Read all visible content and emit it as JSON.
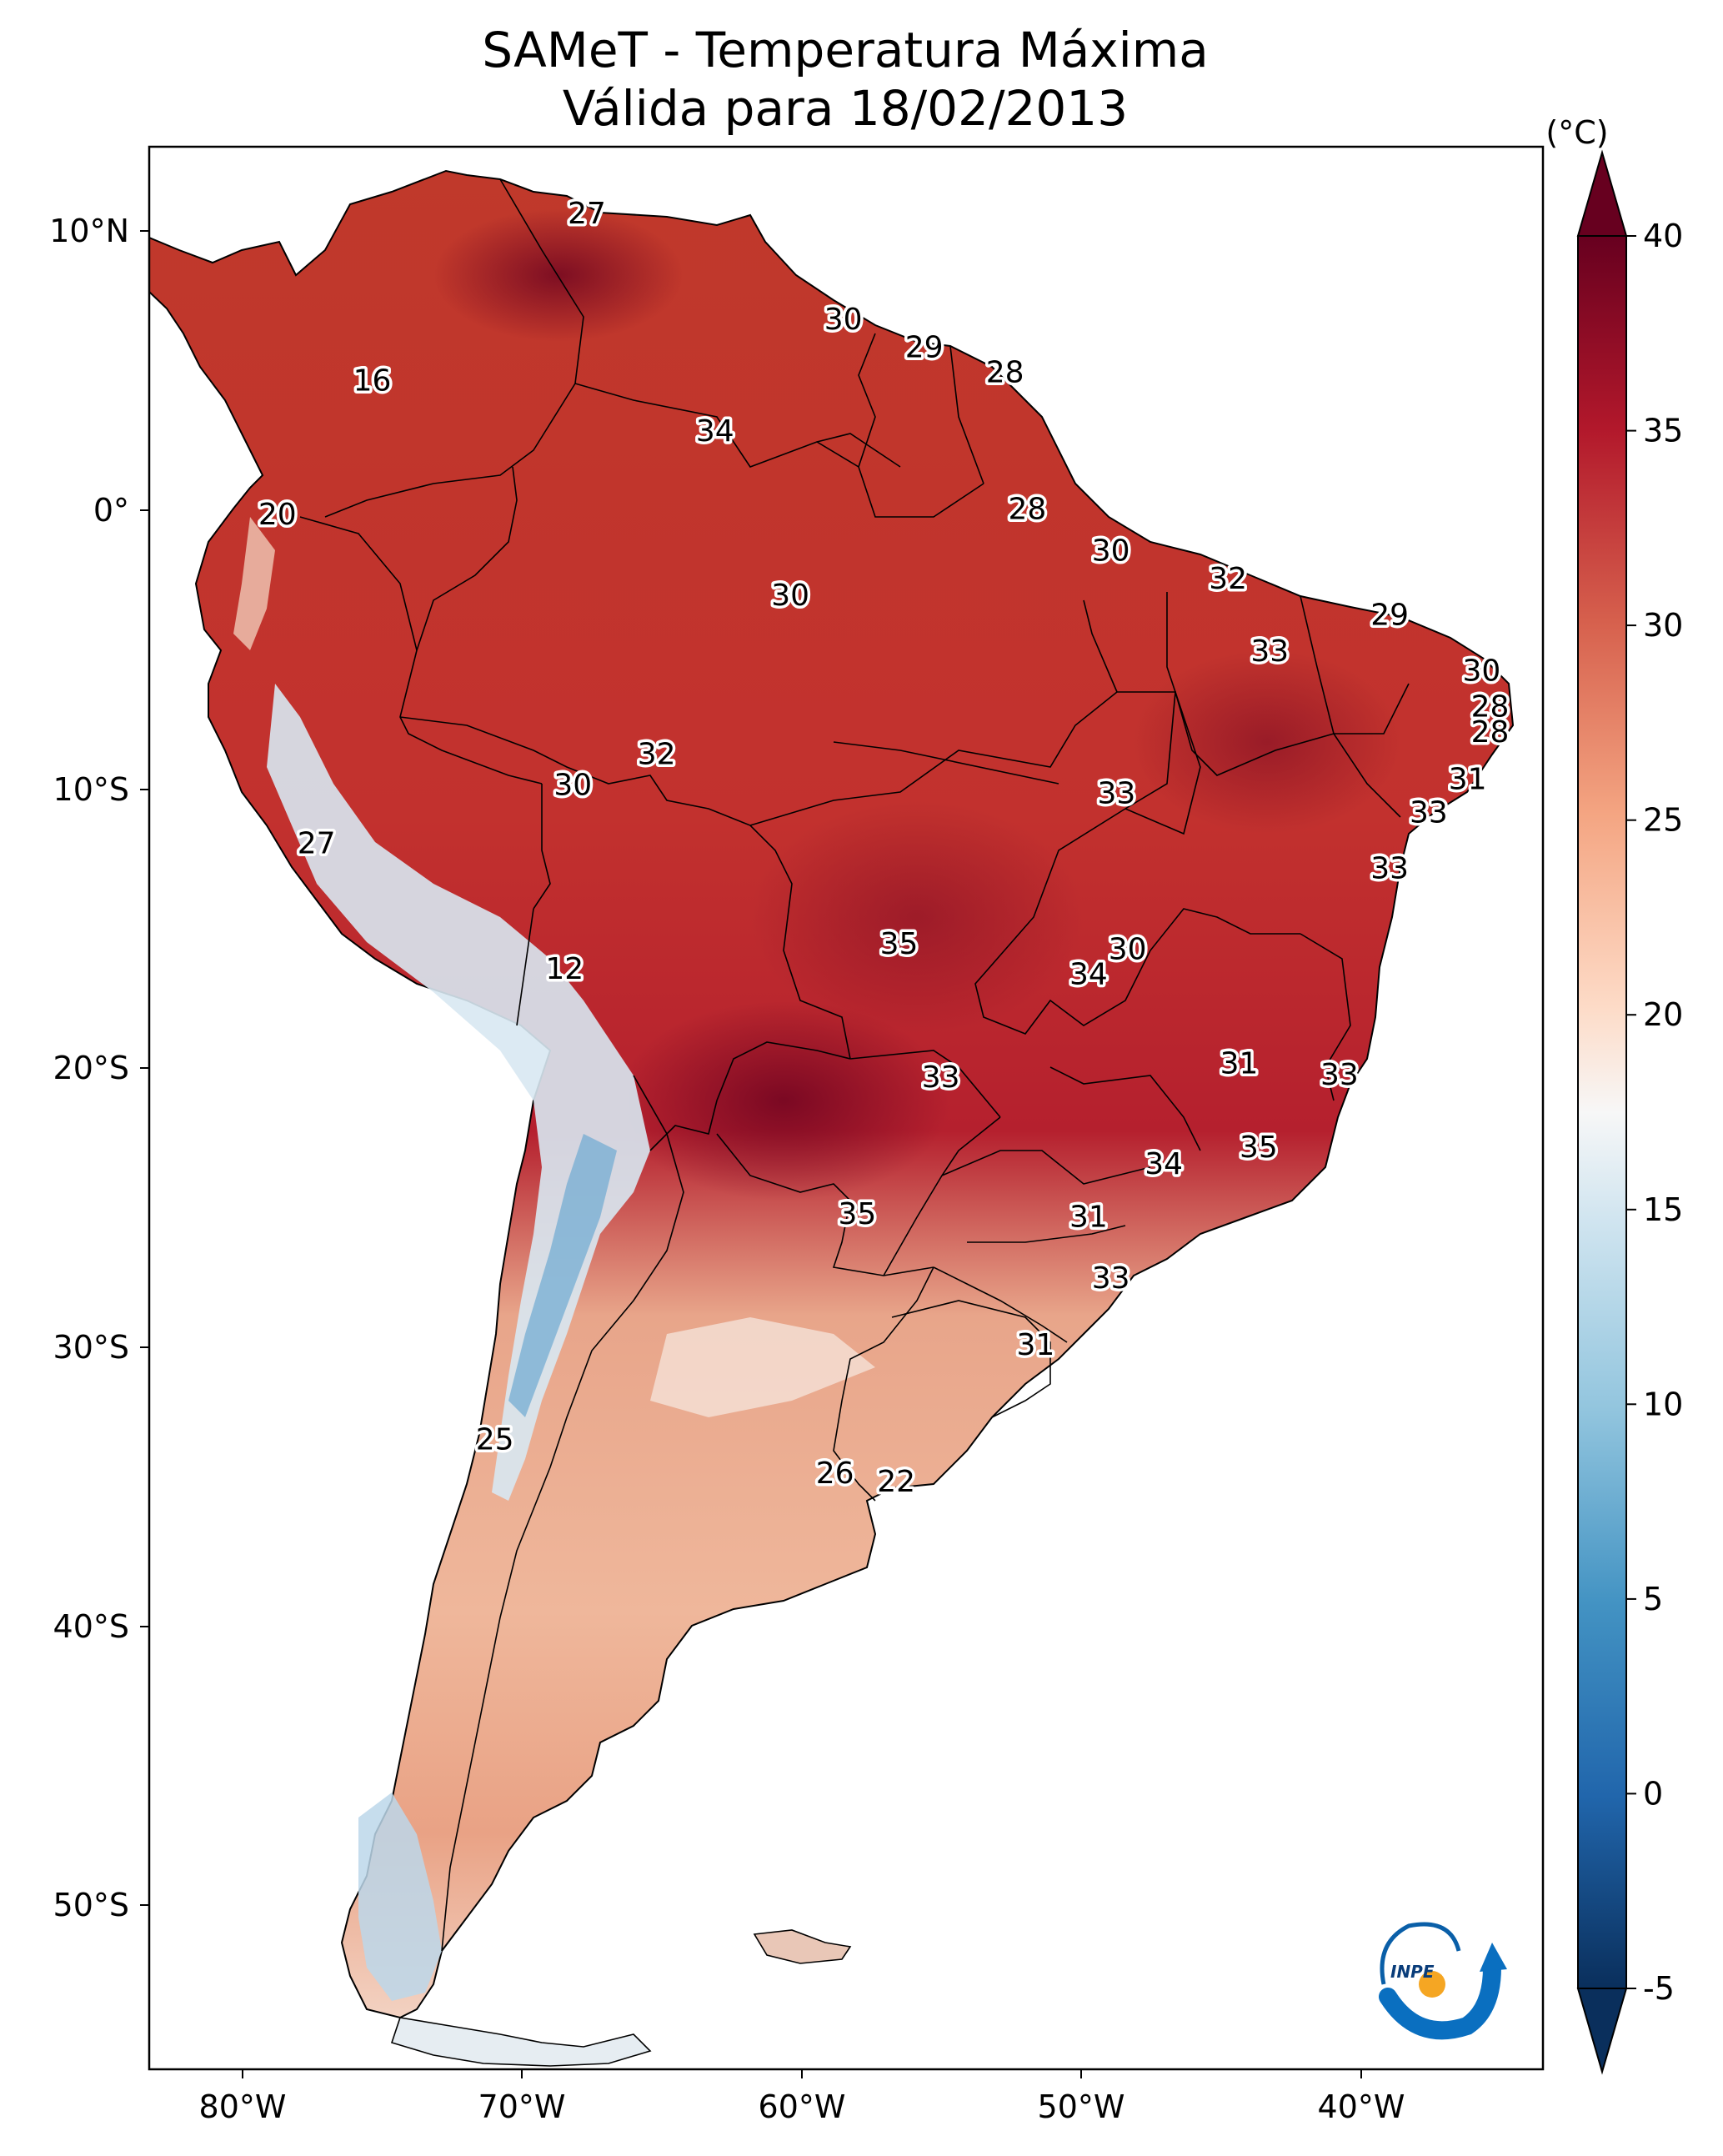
{
  "title": "SAMeT - Temperatura Máxima",
  "subtitle": "Válida para 18/02/2013",
  "logo_text": "INPE",
  "chart_data": {
    "type": "heatmap",
    "variable": "Temperatura Máxima",
    "colorbar": {
      "unit": "(°C)",
      "min": -5,
      "max": 40,
      "ticks": [
        40,
        35,
        30,
        25,
        20,
        15,
        10,
        5,
        0,
        -5
      ],
      "extend": "both",
      "colormap": "RdBu_r"
    },
    "lon_range": [
      -83,
      -33
    ],
    "lat_range": [
      -56,
      13
    ],
    "x_ticks": [
      {
        "value": -80,
        "label": "80°W"
      },
      {
        "value": -70,
        "label": "70°W"
      },
      {
        "value": -60,
        "label": "60°W"
      },
      {
        "value": -50,
        "label": "50°W"
      },
      {
        "value": -40,
        "label": "40°W"
      }
    ],
    "y_ticks": [
      {
        "value": 10,
        "label": "10°N"
      },
      {
        "value": 0,
        "label": "0°"
      },
      {
        "value": -10,
        "label": "10°S"
      },
      {
        "value": -20,
        "label": "20°S"
      },
      {
        "value": -30,
        "label": "30°S"
      },
      {
        "value": -40,
        "label": "40°S"
      },
      {
        "value": -50,
        "label": "50°S"
      }
    ],
    "station_values": [
      {
        "lon": -67.3,
        "lat": 10.6,
        "value": 27
      },
      {
        "lon": -75.0,
        "lat": 4.6,
        "value": 16
      },
      {
        "lon": -58.1,
        "lat": 6.8,
        "value": 30
      },
      {
        "lon": -55.2,
        "lat": 5.8,
        "value": 29
      },
      {
        "lon": -52.3,
        "lat": 4.9,
        "value": 28
      },
      {
        "lon": -62.7,
        "lat": 2.8,
        "value": 34
      },
      {
        "lon": -78.4,
        "lat": -0.2,
        "value": 20
      },
      {
        "lon": -51.5,
        "lat": 0.0,
        "value": 28
      },
      {
        "lon": -48.5,
        "lat": -1.5,
        "value": 30
      },
      {
        "lon": -60.0,
        "lat": -3.1,
        "value": 30
      },
      {
        "lon": -44.3,
        "lat": -2.5,
        "value": 32
      },
      {
        "lon": -38.5,
        "lat": -3.8,
        "value": 29
      },
      {
        "lon": -42.8,
        "lat": -5.1,
        "value": 33
      },
      {
        "lon": -35.2,
        "lat": -5.8,
        "value": 30
      },
      {
        "lon": -34.9,
        "lat": -7.1,
        "value": 28
      },
      {
        "lon": -34.9,
        "lat": -8.0,
        "value": 28
      },
      {
        "lon": -64.8,
        "lat": -8.8,
        "value": 32
      },
      {
        "lon": -67.8,
        "lat": -9.9,
        "value": 30
      },
      {
        "lon": -35.7,
        "lat": -9.7,
        "value": 31
      },
      {
        "lon": -48.3,
        "lat": -10.2,
        "value": 33
      },
      {
        "lon": -37.1,
        "lat": -10.9,
        "value": 33
      },
      {
        "lon": -77.0,
        "lat": -12.0,
        "value": 27
      },
      {
        "lon": -38.5,
        "lat": -12.9,
        "value": 33
      },
      {
        "lon": -56.1,
        "lat": -15.6,
        "value": 35
      },
      {
        "lon": -47.9,
        "lat": -15.8,
        "value": 30
      },
      {
        "lon": -49.3,
        "lat": -16.7,
        "value": 34
      },
      {
        "lon": -68.1,
        "lat": -16.5,
        "value": 12
      },
      {
        "lon": -43.9,
        "lat": -19.9,
        "value": 31
      },
      {
        "lon": -40.3,
        "lat": -20.3,
        "value": 33
      },
      {
        "lon": -54.6,
        "lat": -20.4,
        "value": 33
      },
      {
        "lon": -43.2,
        "lat": -22.9,
        "value": 35
      },
      {
        "lon": -46.6,
        "lat": -23.5,
        "value": 34
      },
      {
        "lon": -57.6,
        "lat": -25.3,
        "value": 35
      },
      {
        "lon": -49.3,
        "lat": -25.4,
        "value": 31
      },
      {
        "lon": -48.5,
        "lat": -27.6,
        "value": 33
      },
      {
        "lon": -51.2,
        "lat": -30.0,
        "value": 31
      },
      {
        "lon": -70.6,
        "lat": -33.4,
        "value": 25
      },
      {
        "lon": -58.4,
        "lat": -34.6,
        "value": 26
      },
      {
        "lon": -56.2,
        "lat": -34.9,
        "value": 22
      }
    ]
  }
}
